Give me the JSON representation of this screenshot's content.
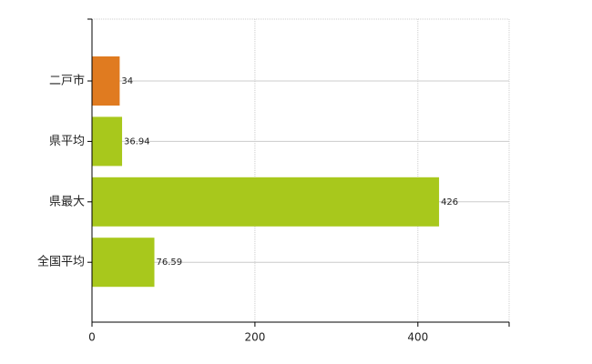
{
  "chart_data": {
    "type": "barh",
    "categories": [
      "二戸市",
      "県平均",
      "県最大",
      "全国平均"
    ],
    "values": [
      34,
      36.94,
      426,
      76.59
    ],
    "colors": [
      "#e07b20",
      "#a8c81c",
      "#a8c81c",
      "#a8c81c"
    ],
    "xlim": [
      0,
      512
    ],
    "xticks": [
      0,
      200,
      400
    ],
    "grid": true
  }
}
